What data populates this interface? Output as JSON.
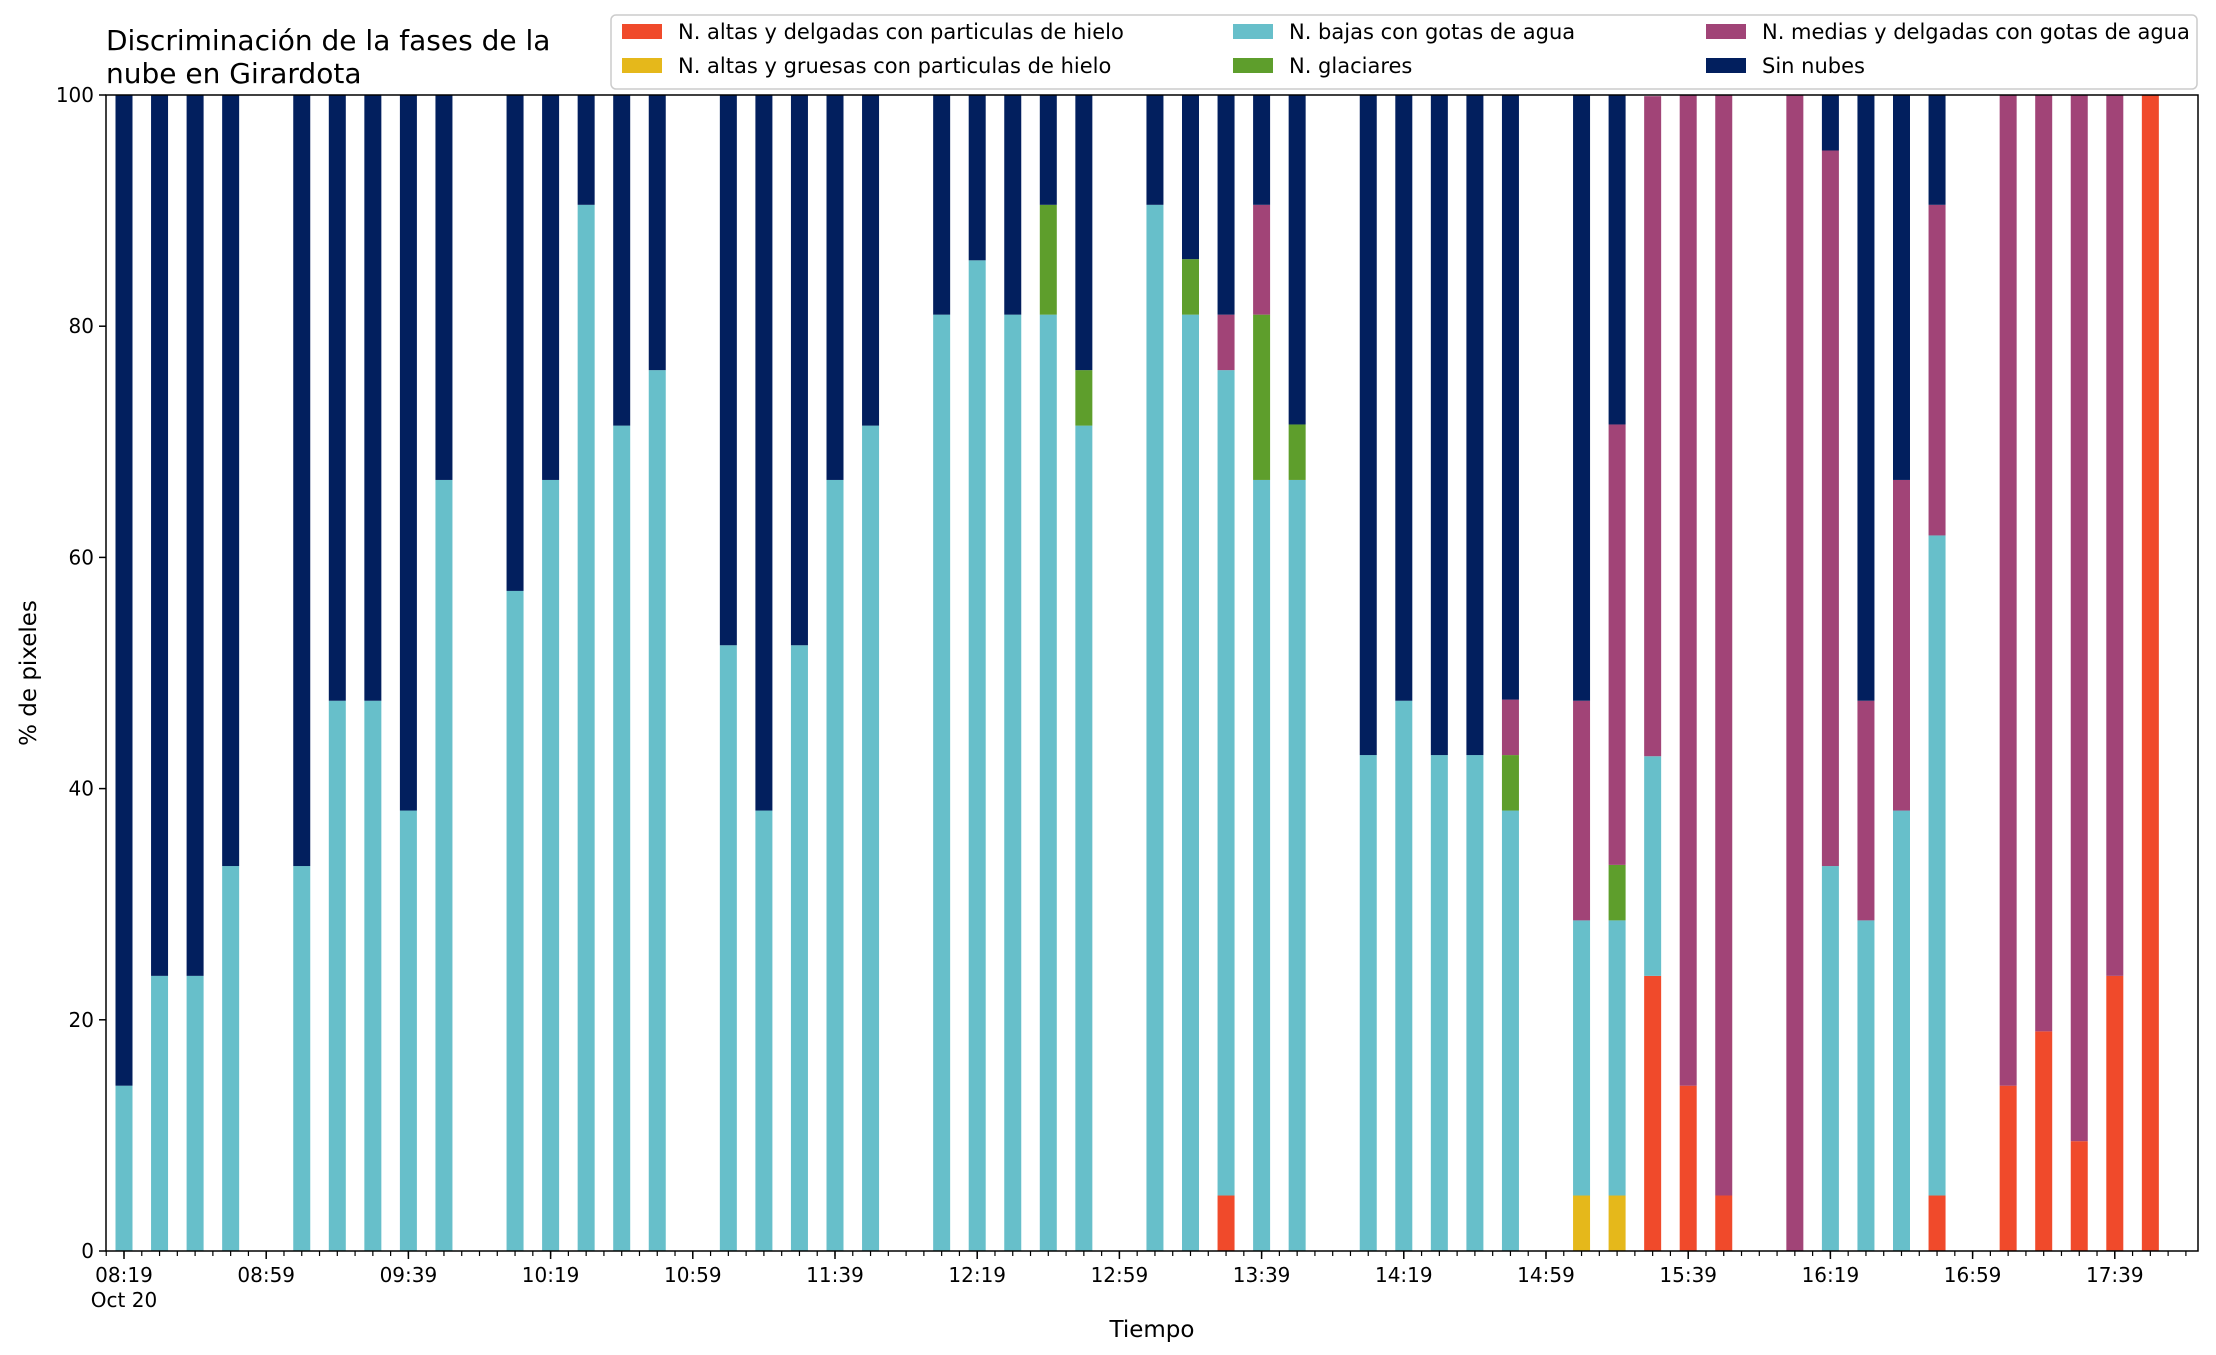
{
  "chart_data": {
    "type": "bar",
    "stacked": true,
    "title_lines": [
      "Discriminación de la fases de la",
      "nube en Girardota"
    ],
    "xlabel": "Tiempo",
    "ylabel": "% de pixeles",
    "ylim": [
      0,
      100
    ],
    "yticks": [
      0,
      20,
      40,
      60,
      80,
      100
    ],
    "x_tick_labels": [
      {
        "slot": 0,
        "text": "08:19",
        "sub": "Oct 20"
      },
      {
        "slot": 4,
        "text": "08:59"
      },
      {
        "slot": 8,
        "text": "09:39"
      },
      {
        "slot": 12,
        "text": "10:19"
      },
      {
        "slot": 16,
        "text": "10:59"
      },
      {
        "slot": 20,
        "text": "11:39"
      },
      {
        "slot": 24,
        "text": "12:19"
      },
      {
        "slot": 28,
        "text": "12:59"
      },
      {
        "slot": 32,
        "text": "13:39"
      },
      {
        "slot": 36,
        "text": "14:19"
      },
      {
        "slot": 40,
        "text": "14:59"
      },
      {
        "slot": 44,
        "text": "15:39"
      },
      {
        "slot": 48,
        "text": "16:19"
      },
      {
        "slot": 52,
        "text": "16:59"
      },
      {
        "slot": 56,
        "text": "17:39"
      }
    ],
    "legend_position": "top-right",
    "series": [
      {
        "name": "N. altas y delgadas con particulas de hielo",
        "color": "#f04a2b",
        "values": [
          0,
          0,
          0,
          0,
          0,
          0,
          0,
          0,
          0,
          0,
          0,
          0,
          0,
          0,
          0,
          0,
          0,
          0,
          0,
          0,
          0,
          0,
          0,
          0,
          0,
          0,
          0,
          0,
          0,
          0,
          0,
          4.8,
          0,
          0,
          0,
          0,
          0,
          0,
          0,
          0,
          0,
          0,
          0,
          23.8,
          14.3,
          4.8,
          0,
          0,
          0,
          0,
          0,
          4.8,
          0,
          14.3,
          19,
          9.5,
          23.8,
          100
        ]
      },
      {
        "name": "N. altas y gruesas con particulas de hielo",
        "color": "#e5b81b",
        "values": [
          0,
          0,
          0,
          0,
          0,
          0,
          0,
          0,
          0,
          0,
          0,
          0,
          0,
          0,
          0,
          0,
          0,
          0,
          0,
          0,
          0,
          0,
          0,
          0,
          0,
          0,
          0,
          0,
          0,
          0,
          0,
          0,
          0,
          0,
          0,
          0,
          0,
          0,
          0,
          0,
          0,
          4.8,
          4.8,
          0,
          0,
          0,
          0,
          0,
          0,
          0,
          0,
          0,
          0,
          0,
          0,
          0,
          0,
          0
        ]
      },
      {
        "name": "N. bajas con gotas de agua",
        "color": "#67bfca",
        "values": [
          14.3,
          23.8,
          23.8,
          33.3,
          0,
          33.3,
          47.6,
          47.6,
          38.1,
          66.7,
          0,
          57.1,
          66.7,
          90.5,
          71.4,
          76.2,
          0,
          52.4,
          38.1,
          52.4,
          66.7,
          71.4,
          0,
          81,
          85.7,
          81,
          81,
          71.4,
          0,
          90.5,
          81,
          71.4,
          66.7,
          66.7,
          0,
          42.9,
          47.6,
          42.9,
          42.9,
          38.1,
          0,
          23.8,
          23.8,
          19,
          0,
          0,
          0,
          0,
          33.3,
          28.6,
          38.1,
          57.1,
          0,
          0,
          0,
          0,
          0,
          0
        ]
      },
      {
        "name": "N. glaciares",
        "color": "#5e9e2c",
        "values": [
          0,
          0,
          0,
          0,
          0,
          0,
          0,
          0,
          0,
          0,
          0,
          0,
          0,
          0,
          0,
          0,
          0,
          0,
          0,
          0,
          0,
          0,
          0,
          0,
          0,
          0,
          9.5,
          4.8,
          0,
          0,
          4.8,
          0,
          14.3,
          4.8,
          0,
          0,
          0,
          0,
          0,
          4.8,
          0,
          0,
          4.8,
          0,
          0,
          0,
          0,
          0,
          0,
          0,
          0,
          0,
          0,
          0,
          0,
          0,
          0,
          0
        ]
      },
      {
        "name": "N. medias y delgadas con gotas de agua",
        "color": "#a14477",
        "values": [
          0,
          0,
          0,
          0,
          0,
          0,
          0,
          0,
          0,
          0,
          0,
          0,
          0,
          0,
          0,
          0,
          0,
          0,
          0,
          0,
          0,
          0,
          0,
          0,
          0,
          0,
          0,
          0,
          0,
          0,
          0,
          4.8,
          9.5,
          0,
          0,
          0,
          0,
          0,
          0,
          4.8,
          0,
          19,
          38.1,
          57.1,
          85.7,
          95.2,
          0,
          100,
          61.9,
          19,
          28.6,
          28.6,
          0,
          85.7,
          81,
          90.5,
          76.2,
          0
        ]
      },
      {
        "name": "Sin nubes",
        "color": "#021f5e",
        "values": [
          85.7,
          76.2,
          76.2,
          66.7,
          0,
          66.7,
          52.4,
          52.4,
          61.9,
          33.3,
          0,
          42.9,
          33.3,
          9.5,
          28.6,
          23.8,
          0,
          47.6,
          61.9,
          47.6,
          33.3,
          28.6,
          0,
          19,
          14.3,
          19,
          9.5,
          23.8,
          0,
          9.5,
          14.3,
          19,
          9.5,
          28.6,
          0,
          57.1,
          52.4,
          57.1,
          57.1,
          52.4,
          0,
          52.4,
          28.6,
          0,
          0,
          0,
          0,
          0,
          4.8,
          52.4,
          33.3,
          9.5,
          0,
          0,
          0,
          0,
          0,
          0
        ]
      }
    ]
  }
}
